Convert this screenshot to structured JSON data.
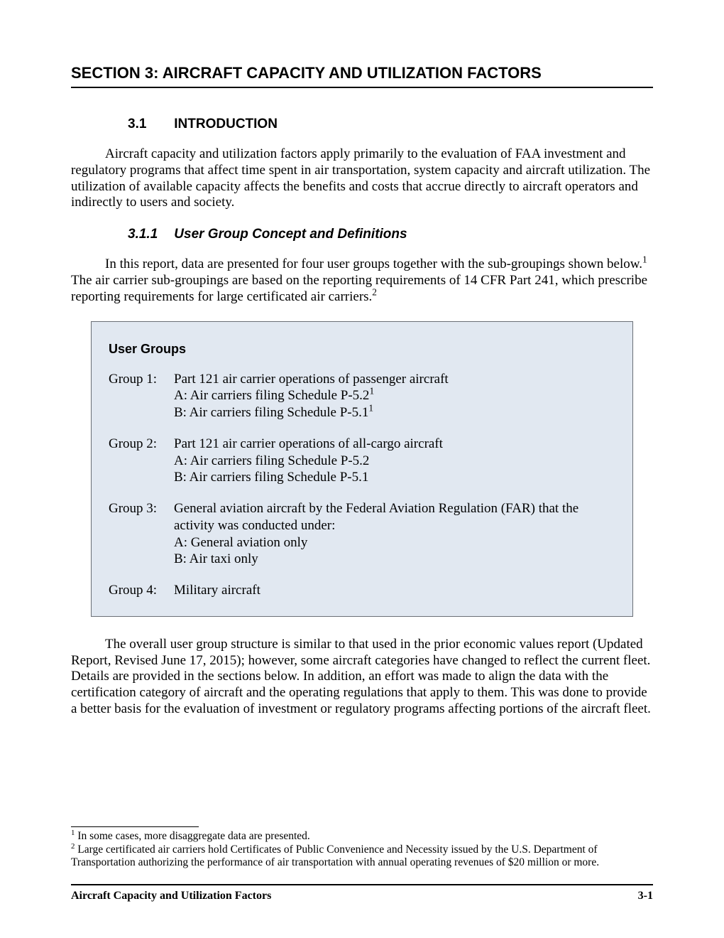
{
  "section_title": "SECTION 3: AIRCRAFT CAPACITY AND UTILIZATION FACTORS",
  "subsection": {
    "num": "3.1",
    "title": "INTRODUCTION"
  },
  "intro_para": "Aircraft capacity and utilization factors apply primarily to the evaluation of FAA investment and regulatory programs that affect time spent in air transportation, system capacity and aircraft utilization. The utilization of available capacity affects the benefits and costs that accrue directly to aircraft operators and indirectly to users and society.",
  "subsubsection": {
    "num": "3.1.1",
    "title": "User Group Concept and Definitions"
  },
  "para2_a": "In this report, data are presented for four user groups together with the sub-groupings shown below.",
  "para2_b": " The air carrier sub-groupings are based on the reporting requirements of 14 CFR Part 241, which prescribe reporting requirements for large certificated air carriers.",
  "box": {
    "title": "User Groups",
    "groups": [
      {
        "label": "Group 1:",
        "line1": "Part 121 air carrier operations of passenger aircraft",
        "line2a": "A: Air carriers filing Schedule P-5.2",
        "line2a_sup": "1",
        "line3a": "B: Air carriers filing Schedule P-5.1",
        "line3a_sup": "1"
      },
      {
        "label": "Group 2:",
        "line1": "Part 121 air carrier operations of all-cargo aircraft",
        "line2": "A: Air carriers filing Schedule P-5.2",
        "line3": "B: Air carriers filing Schedule P-5.1"
      },
      {
        "label": "Group 3:",
        "line1": "General aviation aircraft by the Federal Aviation Regulation (FAR) that the activity was conducted under:",
        "line2": "A: General aviation only",
        "line3": "B: Air taxi only"
      },
      {
        "label": "Group 4:",
        "line1": "Military aircraft"
      }
    ]
  },
  "para3": "The overall user group structure is similar to that used in the prior economic values report (Updated Report, Revised June 17, 2015); however, some aircraft categories have changed to reflect the current fleet. Details are provided in the sections below. In addition, an effort was made to align the data with the certification category of aircraft and the operating regulations that apply to them. This was done to provide a better basis for the evaluation of investment or regulatory programs affecting portions of the aircraft fleet.",
  "footnotes": [
    {
      "num": "1",
      "text": " In some cases, more disaggregate data are presented."
    },
    {
      "num": "2",
      "text": " Large certificated air carriers hold Certificates of Public Convenience and Necessity issued by the U.S. Department of Transportation authorizing the performance of air transportation with annual operating revenues of $20 million or more."
    }
  ],
  "footer": {
    "left": "Aircraft Capacity and Utilization Factors",
    "right": "3-1"
  }
}
